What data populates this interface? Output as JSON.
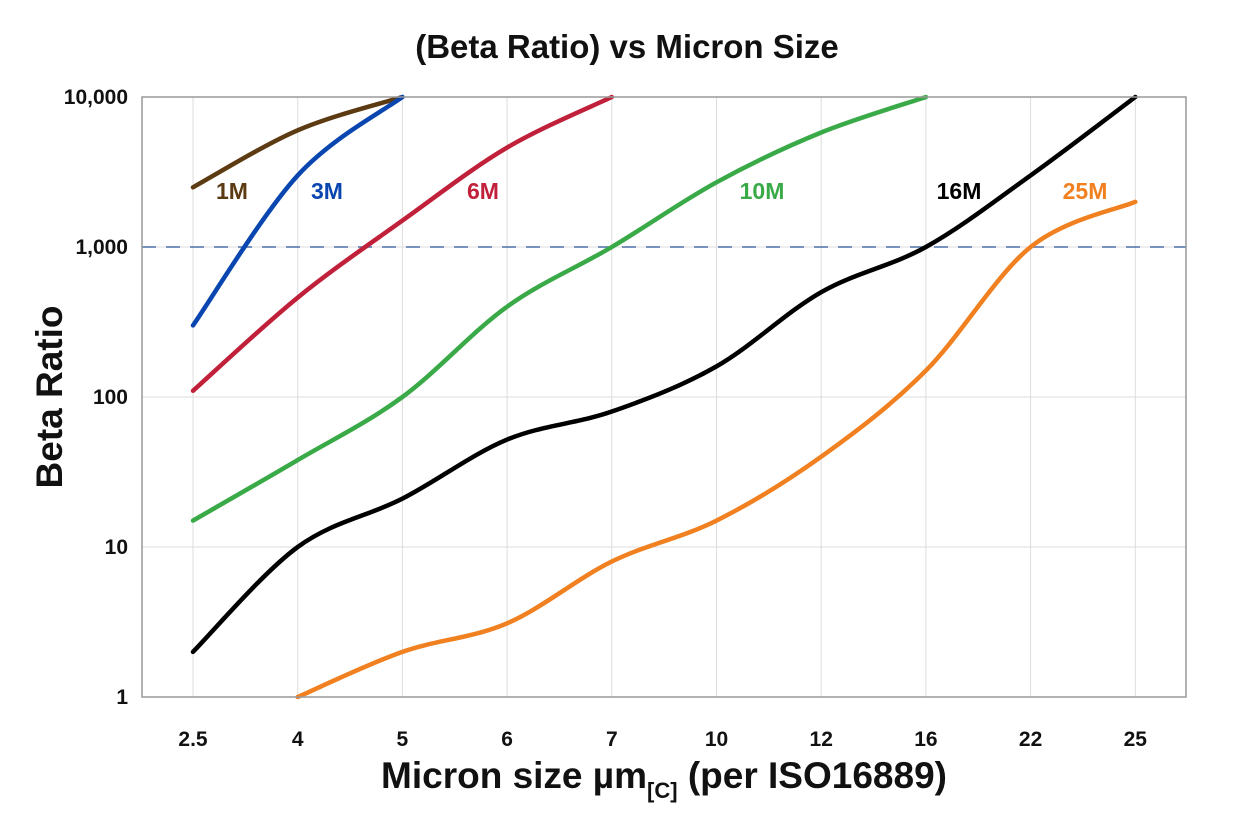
{
  "chart_data": {
    "type": "line",
    "title": "(Beta Ratio) vs Micron Size",
    "xlabel": "Micron size µm",
    "xlabel_subscript": "[C]",
    "xlabel_suffix": " (per ISO16889)",
    "ylabel": "Beta Ratio",
    "categories": [
      "2.5",
      "4",
      "5",
      "6",
      "7",
      "10",
      "12",
      "16",
      "22",
      "25"
    ],
    "y_scale": "log",
    "ylim": [
      1,
      10000
    ],
    "y_ticks": [
      1,
      10,
      100,
      1000,
      10000
    ],
    "y_tick_labels": [
      "1",
      "10",
      "100",
      "1,000",
      "10,000"
    ],
    "grid": true,
    "reference_line": {
      "y": 1000,
      "style": "dashed",
      "color": "#4a6fa5"
    },
    "series": [
      {
        "name": "1M",
        "color": "#5c3a12",
        "values": [
          2500,
          6000,
          10000,
          null,
          null,
          null,
          null,
          null,
          null,
          null
        ]
      },
      {
        "name": "3M",
        "color": "#0a46b0",
        "values": [
          300,
          3000,
          10000,
          null,
          null,
          null,
          null,
          null,
          null,
          null
        ]
      },
      {
        "name": "6M",
        "color": "#c0203a",
        "values": [
          110,
          460,
          1500,
          4600,
          10000,
          null,
          null,
          null,
          null,
          null
        ]
      },
      {
        "name": "10M",
        "color": "#3aaa48",
        "values": [
          15,
          38,
          100,
          400,
          1000,
          2700,
          5800,
          10000,
          null,
          null
        ]
      },
      {
        "name": "16M",
        "color": "#000000",
        "values": [
          2,
          10,
          21,
          52,
          80,
          160,
          500,
          1000,
          3000,
          10000
        ]
      },
      {
        "name": "25M",
        "color": "#f08020",
        "values": [
          null,
          1,
          2,
          3.1,
          8,
          15,
          40,
          150,
          1000,
          2000
        ]
      }
    ]
  }
}
